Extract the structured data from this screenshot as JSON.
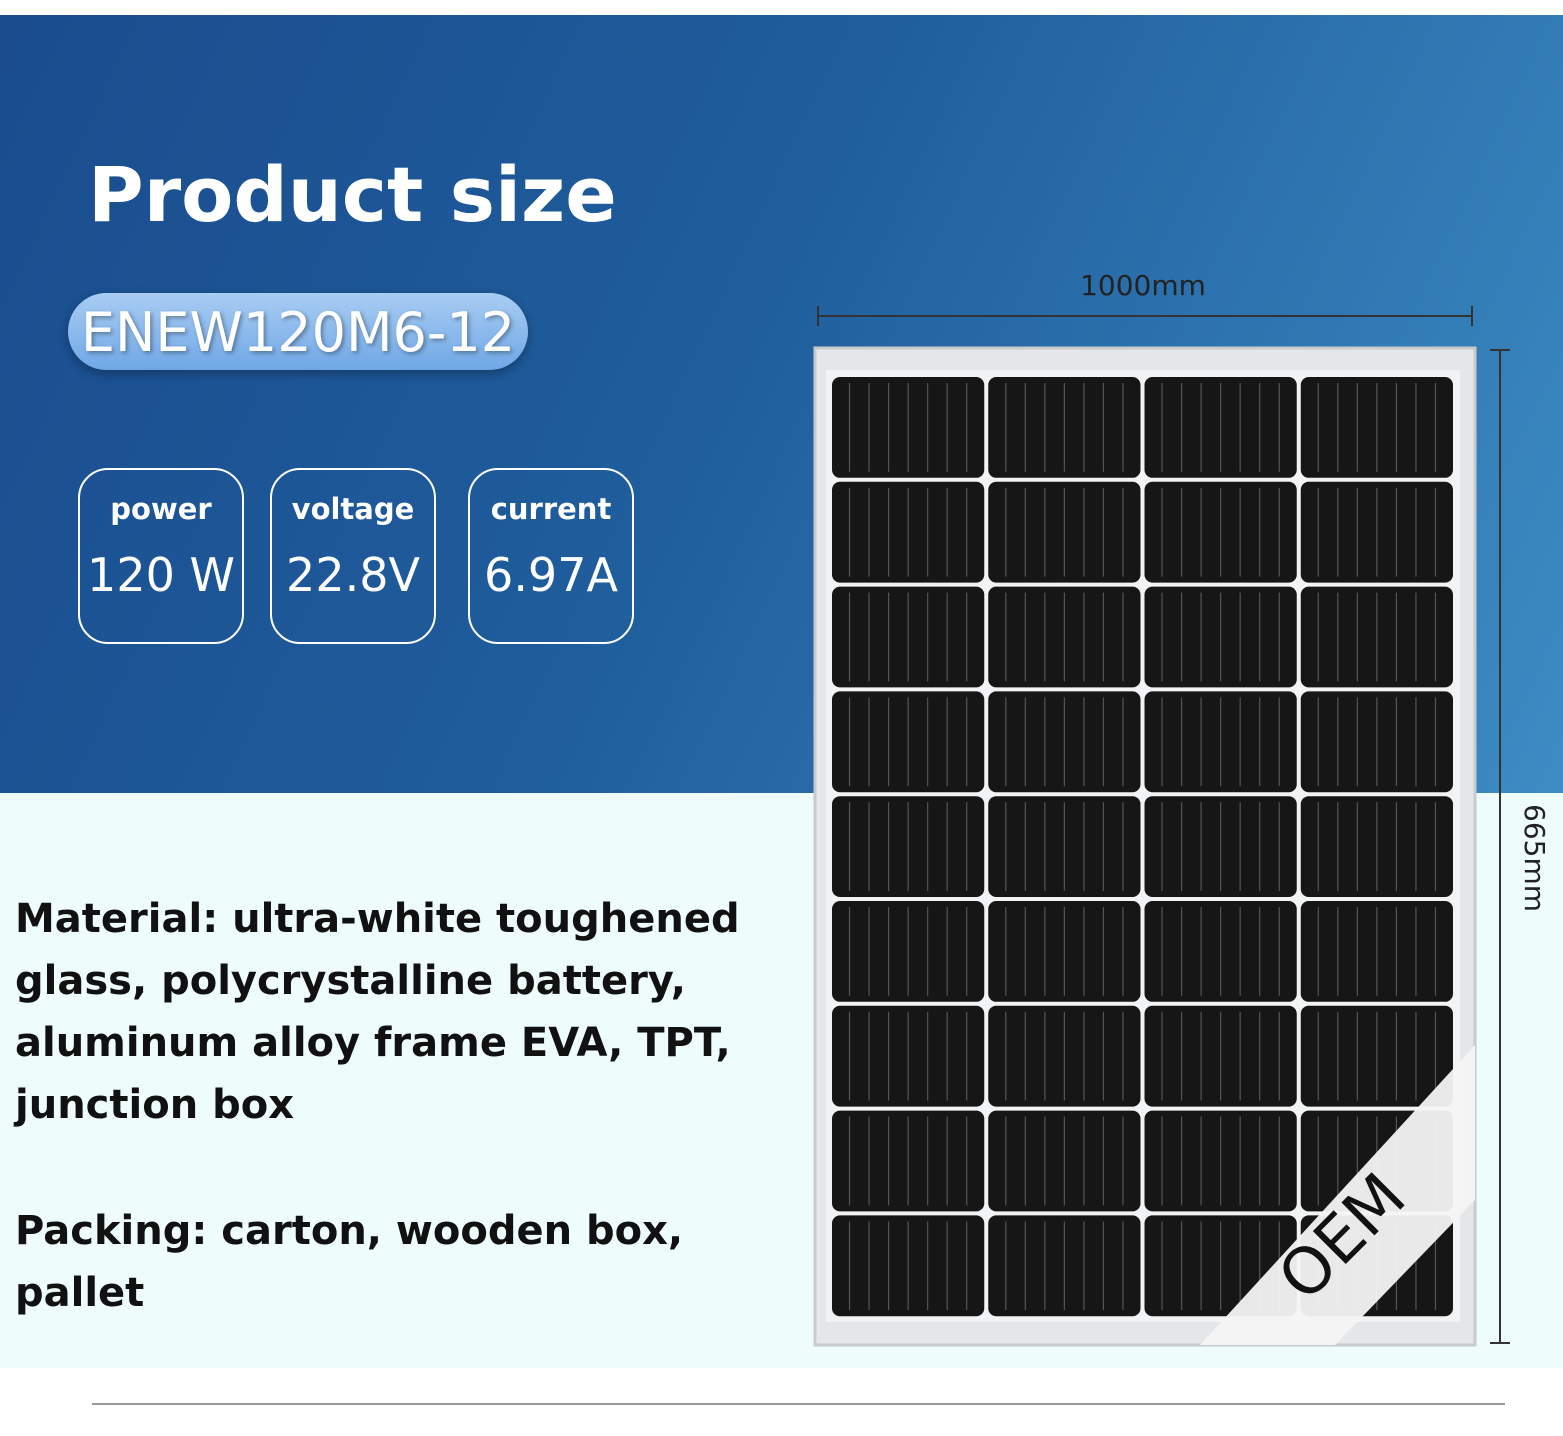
{
  "header": {
    "title": "Product size",
    "model": "ENEW120M6-12"
  },
  "specs": [
    {
      "label": "power",
      "value": "120 W"
    },
    {
      "label": "voltage",
      "value": "22.8V"
    },
    {
      "label": "current",
      "value": "6.97A"
    }
  ],
  "dimensions": {
    "width": "1000mm",
    "height": "665mm"
  },
  "description": {
    "material": "Material: ultra-white toughened glass, polycrystalline battery, aluminum alloy frame EVA, TPT, junction box",
    "packing": "Packing: carton, wooden box, pallet"
  },
  "badge": "OEM"
}
